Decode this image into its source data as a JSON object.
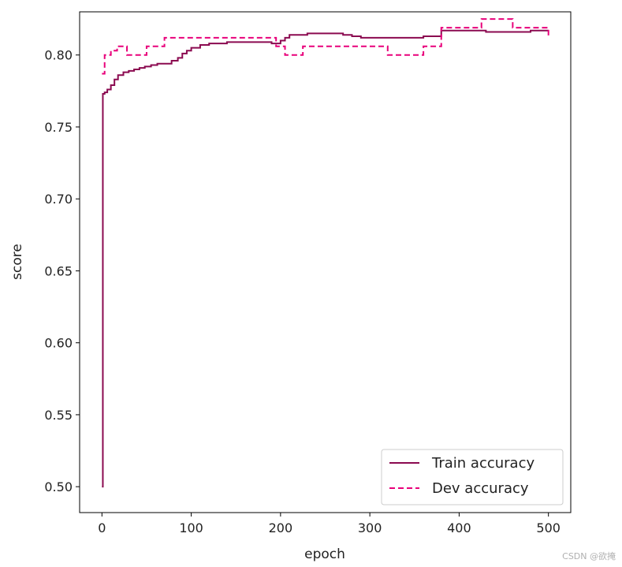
{
  "chart_data": {
    "type": "line",
    "xlabel": "epoch",
    "ylabel": "score",
    "xlim": [
      -25,
      525
    ],
    "ylim": [
      0.482,
      0.83
    ],
    "xticks": [
      0,
      100,
      200,
      300,
      400,
      500
    ],
    "yticks": [
      0.5,
      0.55,
      0.6,
      0.65,
      0.7,
      0.75,
      0.8
    ],
    "ytick_labels": [
      "0.50",
      "0.55",
      "0.60",
      "0.65",
      "0.70",
      "0.75",
      "0.80"
    ],
    "xtick_labels": [
      "0",
      "100",
      "200",
      "300",
      "400",
      "500"
    ],
    "grid": false,
    "legend_position": "lower-right",
    "series": [
      {
        "name": "Train accuracy",
        "style": "solid",
        "color": "#8b0a50",
        "x": [
          0,
          1,
          3,
          6,
          10,
          14,
          18,
          24,
          30,
          36,
          42,
          48,
          55,
          62,
          70,
          78,
          85,
          90,
          95,
          100,
          110,
          120,
          130,
          140,
          150,
          160,
          170,
          180,
          190,
          195,
          200,
          205,
          210,
          220,
          230,
          240,
          250,
          260,
          270,
          280,
          290,
          300,
          310,
          320,
          330,
          340,
          350,
          360,
          370,
          380,
          390,
          400,
          410,
          420,
          430,
          440,
          450,
          460,
          470,
          480,
          490,
          500
        ],
        "y": [
          0.5,
          0.773,
          0.774,
          0.776,
          0.779,
          0.783,
          0.786,
          0.788,
          0.789,
          0.79,
          0.791,
          0.792,
          0.793,
          0.794,
          0.794,
          0.796,
          0.798,
          0.801,
          0.803,
          0.805,
          0.807,
          0.808,
          0.808,
          0.809,
          0.809,
          0.809,
          0.809,
          0.809,
          0.808,
          0.808,
          0.81,
          0.812,
          0.814,
          0.814,
          0.815,
          0.815,
          0.815,
          0.815,
          0.814,
          0.813,
          0.812,
          0.812,
          0.812,
          0.812,
          0.812,
          0.812,
          0.812,
          0.813,
          0.813,
          0.817,
          0.817,
          0.817,
          0.817,
          0.817,
          0.816,
          0.816,
          0.816,
          0.816,
          0.816,
          0.817,
          0.817,
          0.817
        ]
      },
      {
        "name": "Dev accuracy",
        "style": "dashed",
        "color": "#e8007a",
        "x": [
          0,
          3,
          10,
          17,
          28,
          50,
          55,
          70,
          190,
          195,
          205,
          210,
          225,
          300,
          320,
          340,
          360,
          370,
          380,
          420,
          425,
          450,
          460,
          490,
          500
        ],
        "y": [
          0.787,
          0.8,
          0.803,
          0.806,
          0.8,
          0.806,
          0.806,
          0.812,
          0.812,
          0.806,
          0.8,
          0.8,
          0.806,
          0.806,
          0.8,
          0.8,
          0.806,
          0.806,
          0.819,
          0.819,
          0.825,
          0.825,
          0.819,
          0.819,
          0.812
        ]
      }
    ]
  },
  "watermark": "CSDN @欲掩"
}
